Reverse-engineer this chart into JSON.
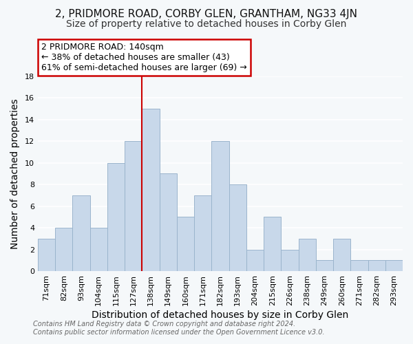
{
  "title": "2, PRIDMORE ROAD, CORBY GLEN, GRANTHAM, NG33 4JN",
  "subtitle": "Size of property relative to detached houses in Corby Glen",
  "xlabel": "Distribution of detached houses by size in Corby Glen",
  "ylabel": "Number of detached properties",
  "footer_line1": "Contains HM Land Registry data © Crown copyright and database right 2024.",
  "footer_line2": "Contains public sector information licensed under the Open Government Licence v3.0.",
  "bar_labels": [
    "71sqm",
    "82sqm",
    "93sqm",
    "104sqm",
    "115sqm",
    "127sqm",
    "138sqm",
    "149sqm",
    "160sqm",
    "171sqm",
    "182sqm",
    "193sqm",
    "204sqm",
    "215sqm",
    "226sqm",
    "238sqm",
    "249sqm",
    "260sqm",
    "271sqm",
    "282sqm",
    "293sqm"
  ],
  "bar_values": [
    3,
    4,
    7,
    4,
    10,
    12,
    15,
    9,
    5,
    7,
    12,
    8,
    2,
    5,
    2,
    3,
    1,
    3,
    1,
    1,
    1
  ],
  "bar_color": "#c8d8ea",
  "bar_edge_color": "#9ab4cc",
  "highlight_index": 6,
  "highlight_line_color": "#cc0000",
  "ylim": [
    0,
    18
  ],
  "yticks": [
    0,
    2,
    4,
    6,
    8,
    10,
    12,
    14,
    16,
    18
  ],
  "annotation_title": "2 PRIDMORE ROAD: 140sqm",
  "annotation_line1": "← 38% of detached houses are smaller (43)",
  "annotation_line2": "61% of semi-detached houses are larger (69) →",
  "annotation_box_color": "#ffffff",
  "annotation_box_edge_color": "#cc0000",
  "background_color": "#f5f8fa",
  "plot_bg_color": "#f5f8fa",
  "grid_color": "#ffffff",
  "title_fontsize": 11,
  "subtitle_fontsize": 10,
  "axis_label_fontsize": 10,
  "tick_fontsize": 8,
  "annotation_fontsize": 9,
  "footer_fontsize": 7
}
